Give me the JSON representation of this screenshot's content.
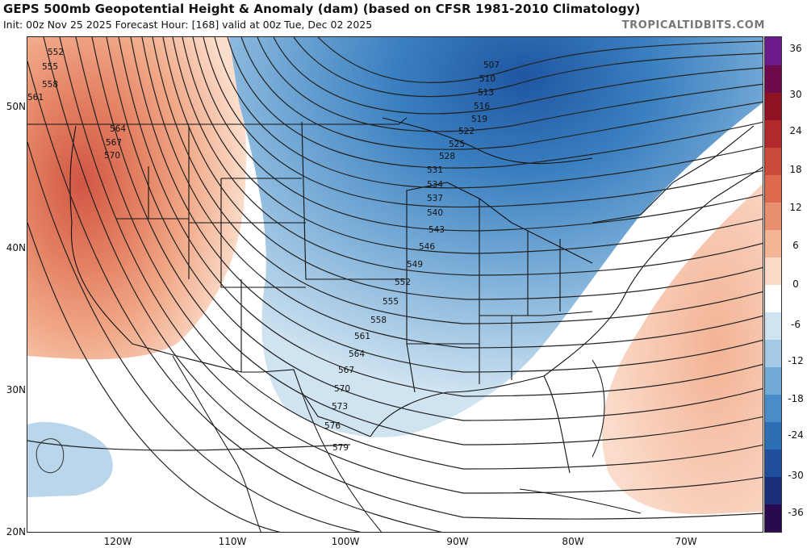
{
  "header": {
    "title": "GEPS 500mb Geopotential Height & Anomaly (dam) (based on CFSR 1981-2010 Climatology)",
    "subtitle": "Init: 00z Nov 25 2025   Forecast Hour: [168]   valid at 00z Tue, Dec 02 2025",
    "brand": "TROPICALTIDBITS.COM"
  },
  "axes": {
    "lat_labels": [
      "50N",
      "40N",
      "30N",
      "20N"
    ],
    "lon_labels": [
      "120W",
      "110W",
      "100W",
      "90W",
      "80W",
      "70W"
    ]
  },
  "contours": {
    "labels": [
      "507",
      "510",
      "513",
      "516",
      "519",
      "522",
      "525",
      "528",
      "531",
      "534",
      "537",
      "540",
      "543",
      "546",
      "549",
      "552",
      "555",
      "558",
      "561",
      "564",
      "567",
      "570",
      "573",
      "576",
      "579",
      "552",
      "555",
      "558",
      "561",
      "564",
      "567",
      "570"
    ]
  },
  "colorbar": {
    "labels": [
      "36",
      "30",
      "24",
      "18",
      "12",
      "6",
      "0",
      "-6",
      "-12",
      "-18",
      "-24",
      "-30",
      "-36"
    ],
    "colors": [
      "#2a0a4e",
      "#1b2f7a",
      "#1f4f9c",
      "#2c6fb4",
      "#4a8cc8",
      "#72aad6",
      "#a3c9e4",
      "#cfe3f1",
      "#ffffff",
      "#fbd9c6",
      "#f4b596",
      "#ea8f6d",
      "#dd6a4f",
      "#cc4a3a",
      "#b22a2b",
      "#8e1221",
      "#6e0a4a",
      "#6c1b8a"
    ]
  },
  "chart_data": {
    "type": "heatmap",
    "title": "GEPS 500mb Geopotential Height & Anomaly (dam) (based on CFSR 1981-2010 Climatology)",
    "contour_interval_dam": 3,
    "height_contour_values": [
      507,
      510,
      513,
      516,
      519,
      522,
      525,
      528,
      531,
      534,
      537,
      540,
      543,
      546,
      549,
      552,
      555,
      558,
      561,
      564,
      567,
      570,
      573,
      576,
      579
    ],
    "anomaly_color_levels": [
      -36,
      -30,
      -24,
      -18,
      -12,
      -6,
      0,
      6,
      12,
      18,
      24,
      30,
      36
    ],
    "lat_range": [
      "20N",
      "55N"
    ],
    "lon_range": [
      "125W",
      "65W"
    ]
  }
}
